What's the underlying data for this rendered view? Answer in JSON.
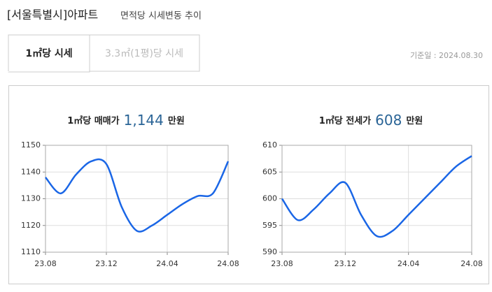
{
  "header": {
    "title": "[서울특별시]아파트",
    "subtitle": "면적당 시세변동 추이"
  },
  "tabs": [
    "1㎡당 시세",
    "3.3㎡(1평)당 시세"
  ],
  "date": "기준일 : 2024.08.30",
  "chart_data": [
    {
      "type": "line",
      "title": "1㎡당 매매가",
      "highlight": "1,144",
      "unit": "만원",
      "categories": [
        "23.08",
        null,
        null,
        null,
        "23.12",
        null,
        null,
        null,
        "24.04",
        null,
        null,
        null,
        "24.08"
      ],
      "values": [
        1138,
        1132,
        1139,
        1144,
        1143,
        1127,
        1118,
        1120,
        1124,
        1128,
        1131,
        1132,
        1144
      ],
      "color": "#1a66e6",
      "ylim": [
        1110,
        1150
      ],
      "yticks": [
        1110,
        1120,
        1130,
        1140,
        1150
      ],
      "grid": true
    },
    {
      "type": "line",
      "title": "1㎡당 전세가",
      "highlight": "608",
      "unit": "만원",
      "categories": [
        "23.08",
        null,
        null,
        null,
        "23.12",
        null,
        null,
        null,
        "24.04",
        null,
        null,
        null,
        "24.08"
      ],
      "values": [
        600,
        596,
        598,
        601,
        603,
        597,
        593,
        594,
        597,
        600,
        603,
        606,
        608
      ],
      "color": "#1a66e6",
      "ylim": [
        590,
        610
      ],
      "yticks": [
        590,
        595,
        600,
        605,
        610
      ],
      "grid": true
    }
  ]
}
